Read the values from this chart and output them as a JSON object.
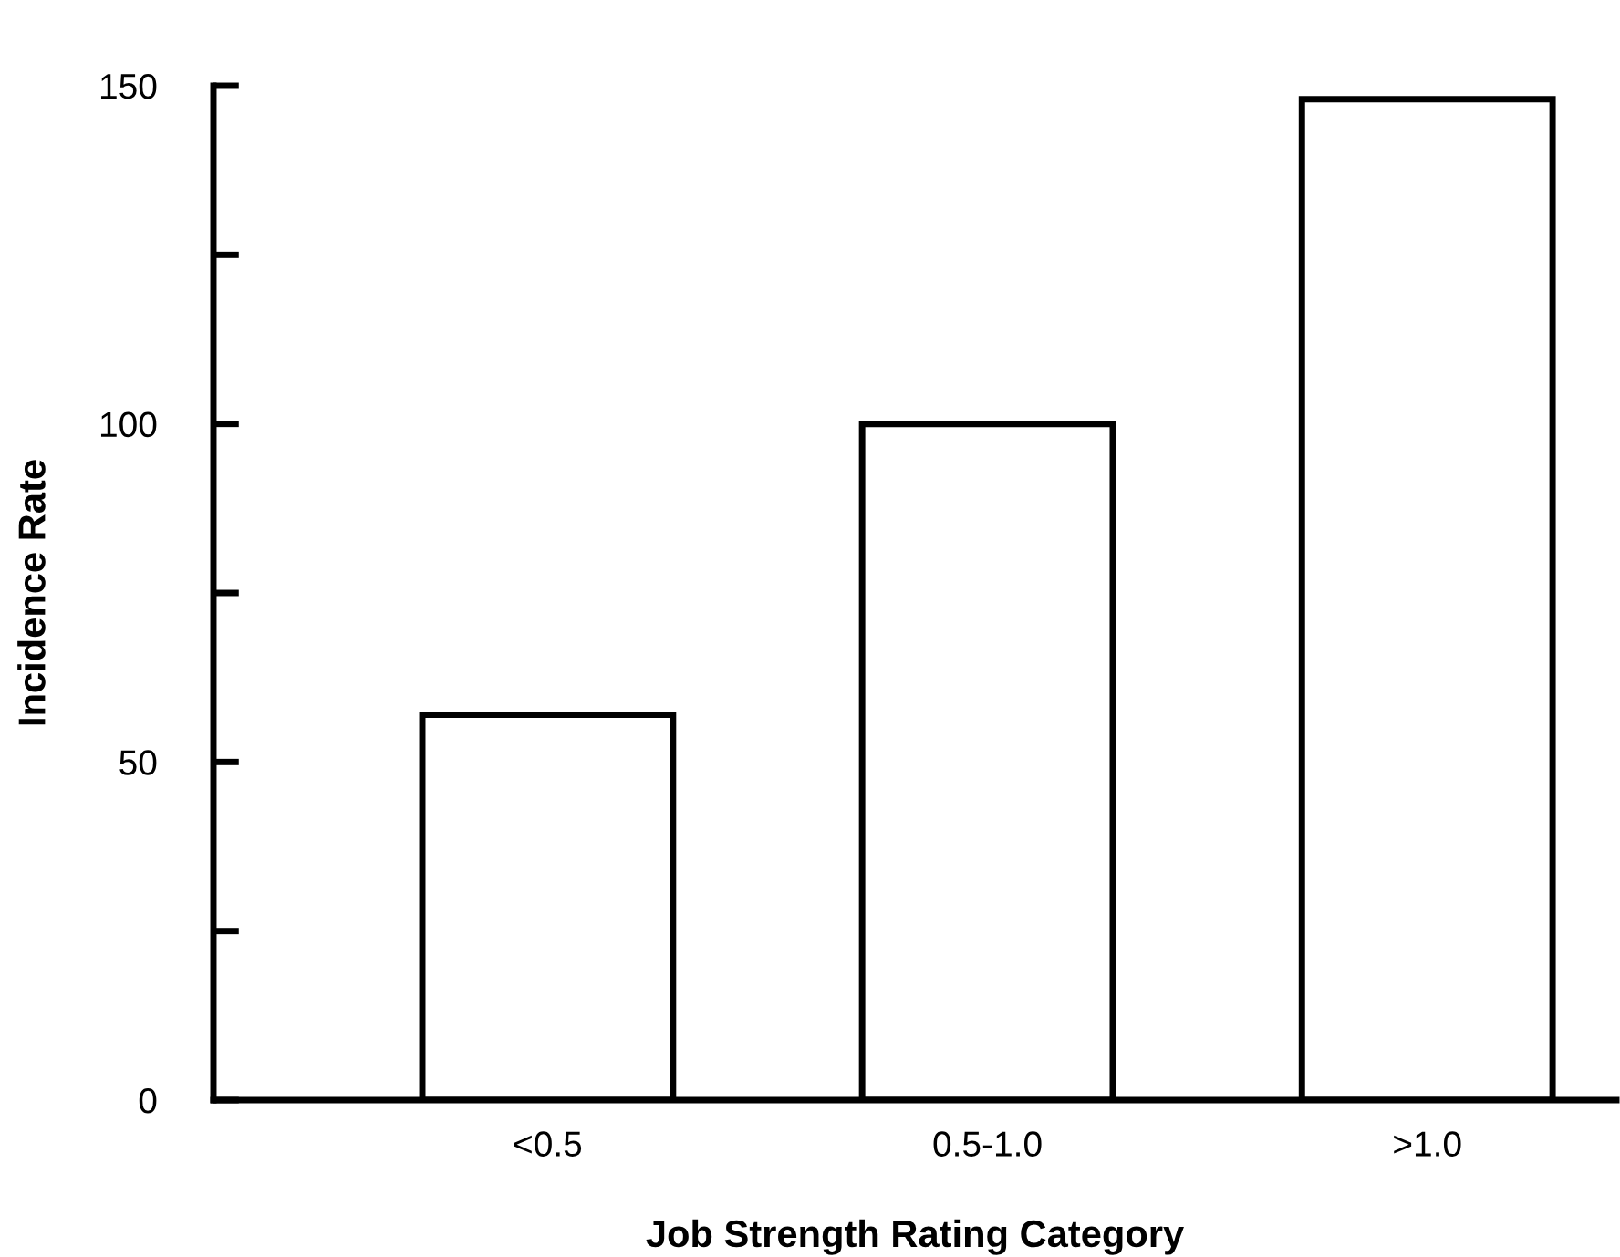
{
  "chart_data": {
    "type": "bar",
    "xlabel": "Job Strength Rating Category",
    "ylabel": "Incidence Rate",
    "categories": [
      "<0.5",
      "0.5-1.0",
      ">1.0"
    ],
    "values": [
      57,
      100,
      148
    ],
    "color": "#ffffff",
    "ylim": [
      0,
      150
    ],
    "yticks": [
      0,
      {
        "value": 25,
        "label": null
      },
      50,
      {
        "value": 75,
        "label": null
      },
      100,
      {
        "value": 125,
        "label": null
      },
      150
    ],
    "grid": false
  }
}
